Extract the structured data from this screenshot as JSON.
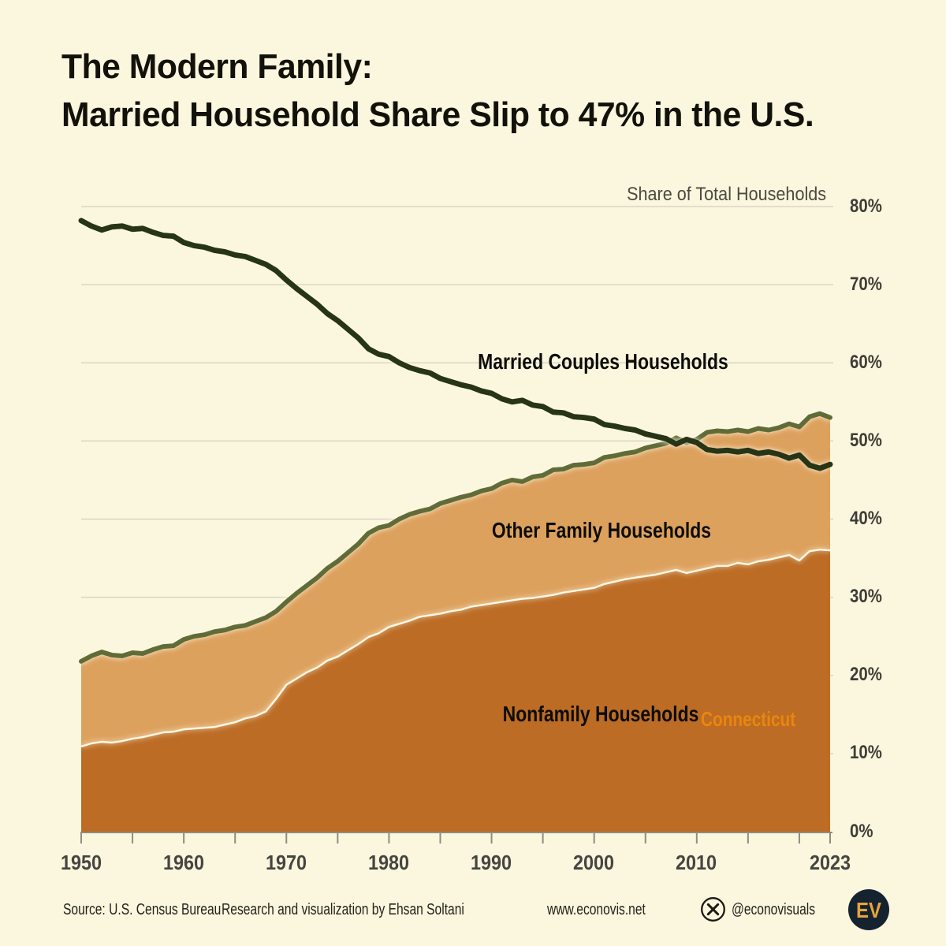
{
  "title": {
    "line1": "The Modern Family:",
    "line2": "Married Household Share Slip to 47% in the U.S."
  },
  "chart": {
    "axis_title": "Share of Total Households",
    "y_tick_labels": [
      "80%",
      "70%",
      "60%",
      "50%",
      "40%",
      "30%",
      "20%",
      "10%",
      "0%"
    ],
    "x_tick_labels": [
      "1950",
      "1960",
      "1970",
      "1980",
      "1990",
      "2000",
      "2010",
      "2023"
    ],
    "series_labels": {
      "married": "Married Couples Households",
      "other_family": "Other Family Households",
      "nonfamily": "Nonfamily Households",
      "stray_state_label": "Connecticut"
    }
  },
  "chart_data": {
    "type": "area",
    "title": "The Modern Family: Married Household Share Slip to 47% in the U.S.",
    "axis_title": "Share of Total Households",
    "unit": "% of total households",
    "xlim": [
      1950,
      2023
    ],
    "ylim": [
      0,
      80
    ],
    "grid": "horizontal",
    "legend": "direct-labels-on-chart",
    "stack_order_bottom_to_top": [
      "Nonfamily Households",
      "Other Family Households"
    ],
    "x": [
      1950,
      1951,
      1952,
      1953,
      1954,
      1955,
      1956,
      1957,
      1958,
      1959,
      1960,
      1961,
      1962,
      1963,
      1964,
      1965,
      1966,
      1967,
      1968,
      1969,
      1970,
      1971,
      1972,
      1973,
      1974,
      1975,
      1976,
      1977,
      1978,
      1979,
      1980,
      1981,
      1982,
      1983,
      1984,
      1985,
      1986,
      1987,
      1988,
      1989,
      1990,
      1991,
      1992,
      1993,
      1994,
      1995,
      1996,
      1997,
      1998,
      1999,
      2000,
      2001,
      2002,
      2003,
      2004,
      2005,
      2006,
      2007,
      2008,
      2009,
      2010,
      2011,
      2012,
      2013,
      2014,
      2015,
      2016,
      2017,
      2018,
      2019,
      2020,
      2021,
      2022,
      2023
    ],
    "series": [
      {
        "name": "Married Couples Households",
        "role": "line",
        "color": "#283618",
        "values": [
          78.2,
          77.5,
          77.0,
          77.4,
          77.5,
          77.1,
          77.2,
          76.7,
          76.3,
          76.2,
          75.4,
          75.0,
          74.8,
          74.4,
          74.2,
          73.8,
          73.6,
          73.1,
          72.6,
          71.8,
          70.6,
          69.5,
          68.5,
          67.5,
          66.3,
          65.4,
          64.3,
          63.2,
          61.8,
          61.1,
          60.8,
          60.0,
          59.4,
          59.0,
          58.7,
          58.0,
          57.6,
          57.2,
          56.9,
          56.4,
          56.1,
          55.4,
          55.0,
          55.2,
          54.6,
          54.4,
          53.7,
          53.6,
          53.1,
          53.0,
          52.8,
          52.1,
          51.9,
          51.6,
          51.4,
          50.9,
          50.6,
          50.3,
          49.6,
          50.2,
          49.8,
          48.9,
          48.7,
          48.8,
          48.6,
          48.8,
          48.4,
          48.6,
          48.3,
          47.8,
          48.2,
          46.9,
          46.5,
          47.0
        ]
      },
      {
        "name": "Other Family Households",
        "role": "area-stacked",
        "color": "#DDA15E",
        "outline_color": "#606C38",
        "values": [
          10.9,
          11.2,
          11.5,
          11.2,
          10.9,
          11.0,
          10.7,
          10.9,
          11.0,
          11.0,
          11.5,
          11.8,
          11.9,
          12.2,
          12.1,
          12.2,
          11.9,
          12.1,
          12.0,
          11.2,
          10.6,
          10.9,
          11.1,
          11.5,
          11.8,
          12.2,
          12.5,
          12.8,
          13.3,
          13.5,
          13.0,
          13.4,
          13.6,
          13.5,
          13.6,
          14.1,
          14.2,
          14.4,
          14.3,
          14.6,
          14.7,
          15.2,
          15.4,
          15.0,
          15.5,
          15.5,
          16.0,
          15.8,
          16.1,
          16.0,
          16.0,
          16.2,
          16.1,
          16.1,
          16.1,
          16.4,
          16.5,
          16.5,
          16.9,
          16.7,
          16.8,
          17.4,
          17.3,
          17.2,
          17.0,
          17.0,
          17.0,
          16.6,
          16.6,
          16.8,
          17.1,
          17.2,
          17.4,
          17.0
        ]
      },
      {
        "name": "Nonfamily Households",
        "role": "area-stacked",
        "color": "#BC6C25",
        "outline_color": "#FFF8E6",
        "values": [
          10.9,
          11.3,
          11.5,
          11.4,
          11.6,
          11.9,
          12.1,
          12.4,
          12.7,
          12.8,
          13.1,
          13.2,
          13.3,
          13.4,
          13.7,
          14.0,
          14.5,
          14.8,
          15.4,
          17.0,
          18.8,
          19.6,
          20.4,
          21.0,
          21.9,
          22.4,
          23.2,
          24.0,
          24.9,
          25.4,
          26.2,
          26.6,
          27.0,
          27.5,
          27.7,
          27.9,
          28.2,
          28.4,
          28.8,
          29.0,
          29.2,
          29.4,
          29.6,
          29.8,
          29.9,
          30.1,
          30.3,
          30.6,
          30.8,
          31.0,
          31.2,
          31.7,
          32.0,
          32.3,
          32.5,
          32.7,
          32.9,
          33.2,
          33.5,
          33.1,
          33.4,
          33.7,
          34.0,
          34.0,
          34.4,
          34.2,
          34.6,
          34.8,
          35.1,
          35.4,
          34.7,
          35.9,
          36.1,
          36.0
        ]
      }
    ]
  },
  "footer": {
    "source": "Source: U.S. Census Bureau",
    "credit": "Research and visualization by Ehsan Soltani",
    "website": "www.econovis.net",
    "x_handle": "@econovisuals",
    "logo_text": "EV"
  },
  "colors": {
    "background": "#FBF6DE",
    "married_line": "#283618",
    "other_family_area": "#DDA15E",
    "nonfamily_area": "#BC6C25",
    "stacked_top_line": "#606C38",
    "nonfamily_boundary_line": "#FFF8E6",
    "grid": "#D9D5C4",
    "axis": "#8F8D80",
    "connecticut_label": "#E8860D",
    "logo_bg": "#152330",
    "logo_letters": "#E7A53C"
  }
}
